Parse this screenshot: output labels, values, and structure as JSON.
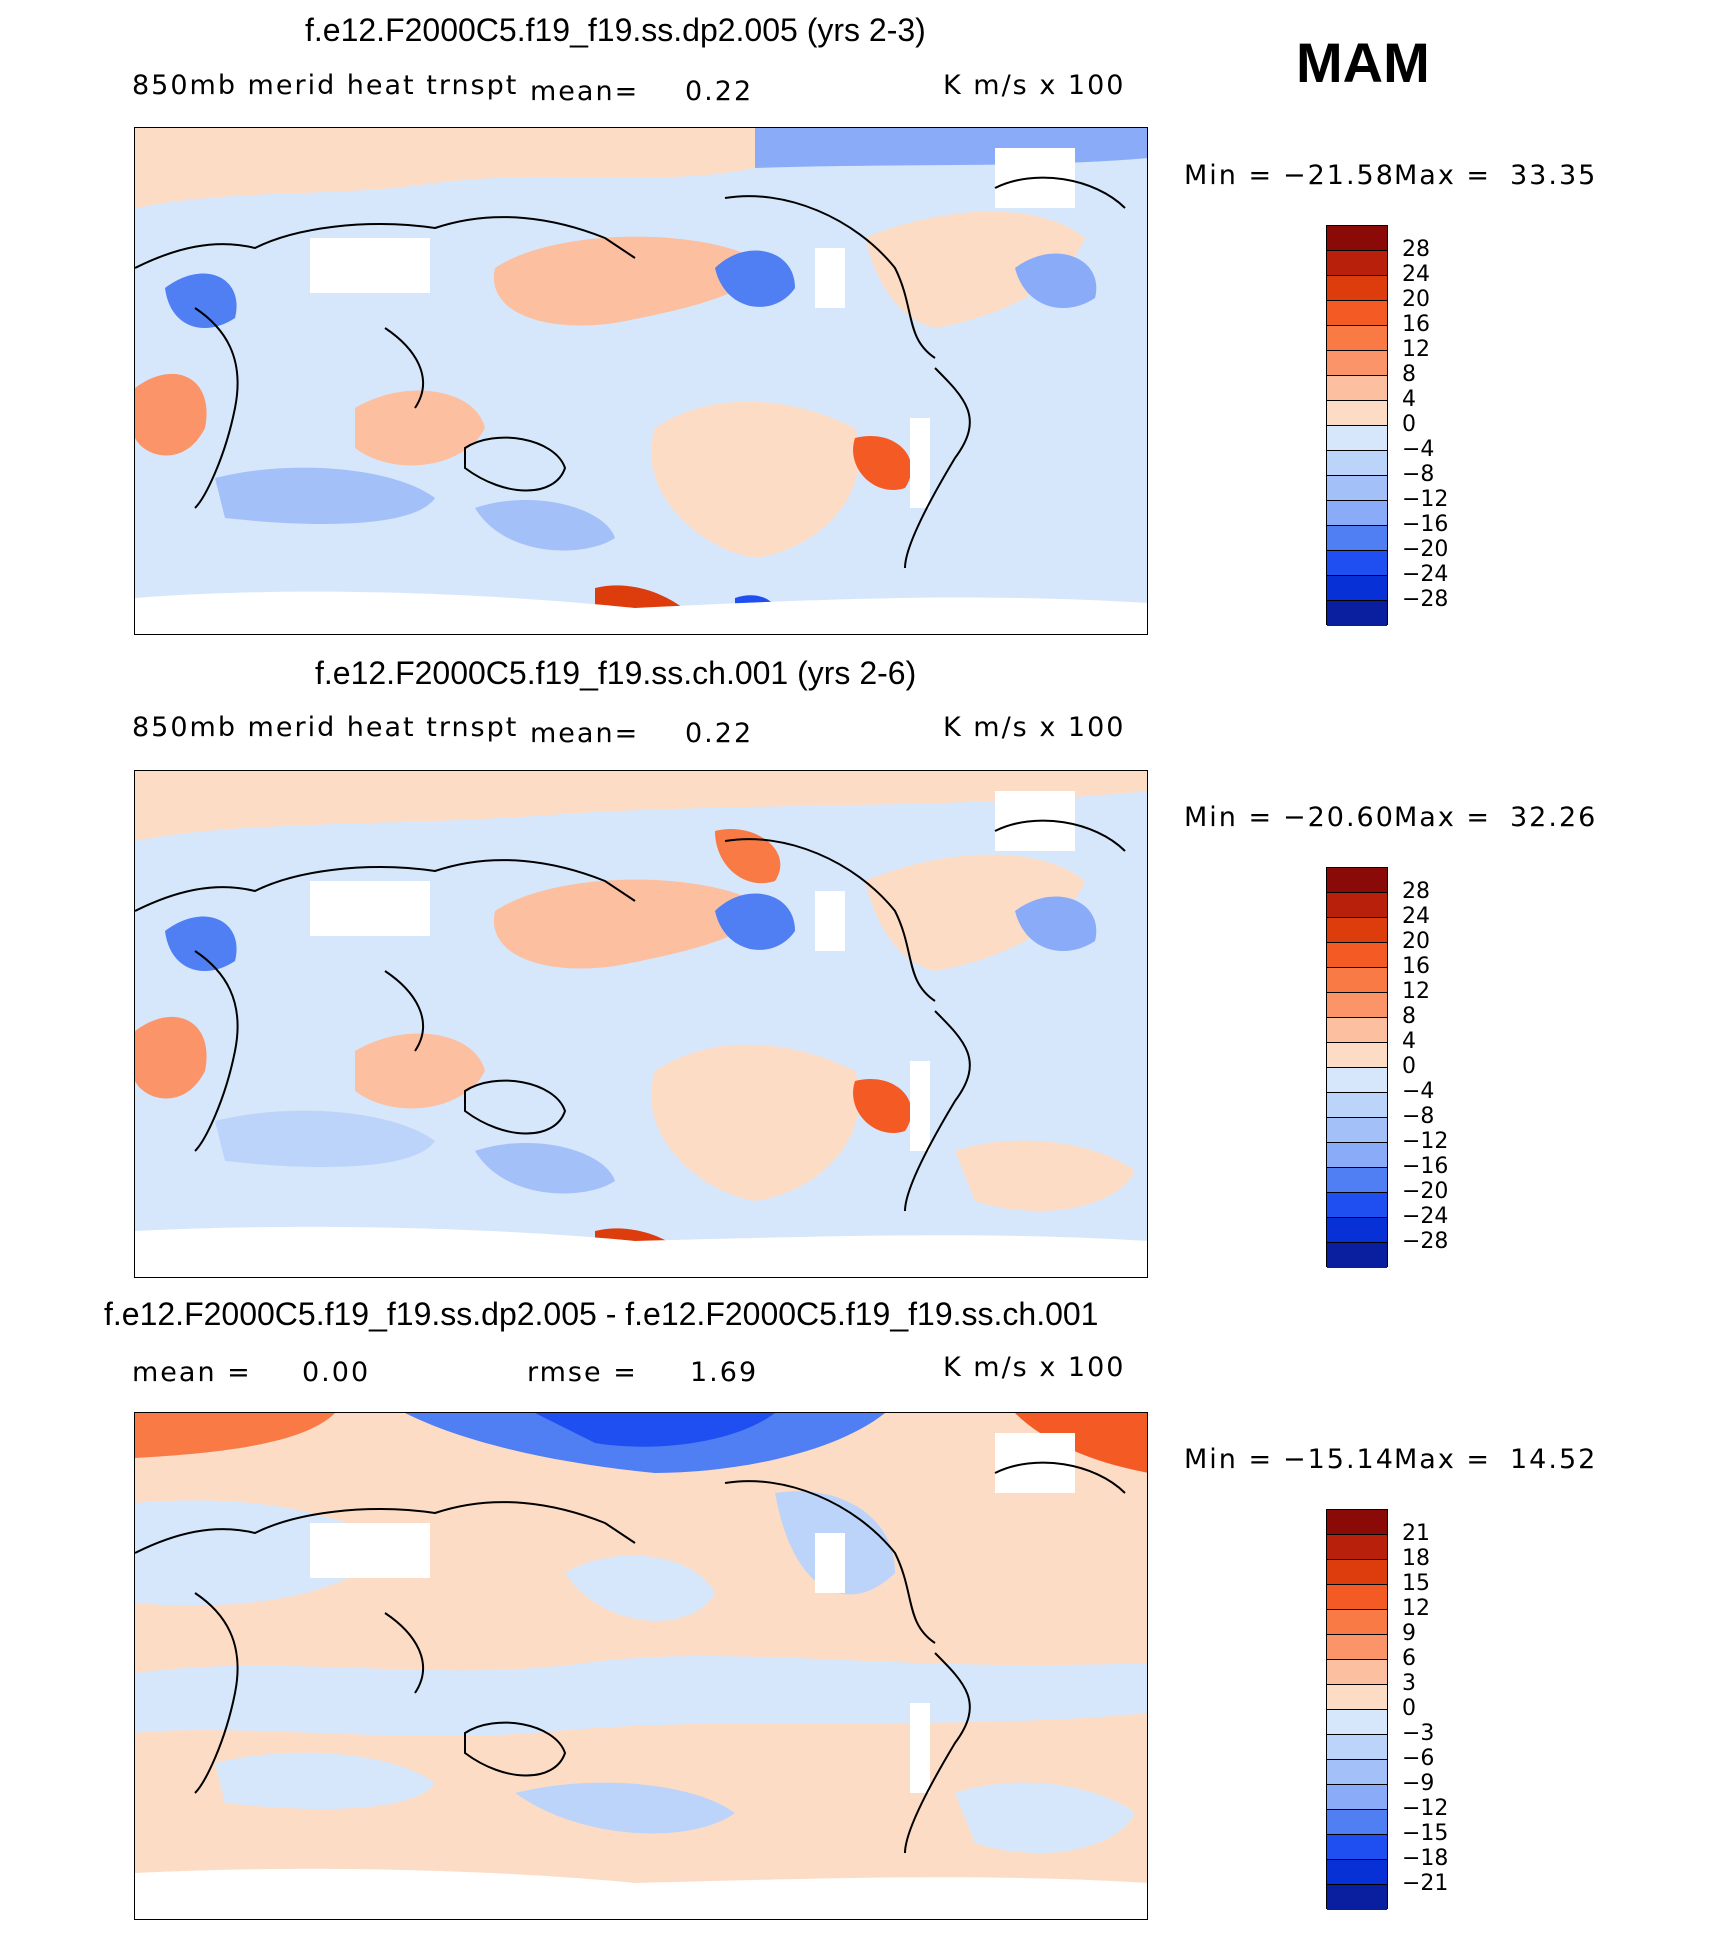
{
  "season": "MAM",
  "colors": {
    "pos": [
      "#fddcc6",
      "#fcbfa0",
      "#fb9468",
      "#fa7a45",
      "#f45a24",
      "#dd3d0c",
      "#b9200b",
      "#8a0a08"
    ],
    "neg": [
      "#d6e7fb",
      "#bcd4fa",
      "#a3c0f9",
      "#8aabf7",
      "#4f7ff3",
      "#1f4ff0",
      "#0730d6",
      "#0a1fa0",
      "#061286"
    ],
    "land_line": "#000000",
    "missing": "#ffffff"
  },
  "panels": [
    {
      "title": "f.e12.F2000C5.f19_f19.ss.dp2.005 (yrs 2-3)",
      "variable": "850mb  merid  heat  trnspt",
      "mean_label": "mean=",
      "mean_value": "0.22",
      "units": "K  m/s  x  100",
      "min_label": "Min  =",
      "min_value": "−21.58",
      "max_label": "Max  =",
      "max_value": "33.35",
      "colorbar_ticks": [
        "28",
        "24",
        "20",
        "16",
        "12",
        "8",
        "4",
        "0",
        "−4",
        "−8",
        "−12",
        "−16",
        "−20",
        "−24",
        "−28"
      ]
    },
    {
      "title": "f.e12.F2000C5.f19_f19.ss.ch.001 (yrs 2-6)",
      "variable": "850mb  merid  heat  trnspt",
      "mean_label": "mean=",
      "mean_value": "0.22",
      "units": "K  m/s  x  100",
      "min_label": "Min  =",
      "min_value": "−20.60",
      "max_label": "Max  =",
      "max_value": "32.26",
      "colorbar_ticks": [
        "28",
        "24",
        "20",
        "16",
        "12",
        "8",
        "4",
        "0",
        "−4",
        "−8",
        "−12",
        "−16",
        "−20",
        "−24",
        "−28"
      ]
    },
    {
      "title": "f.e12.F2000C5.f19_f19.ss.dp2.005 - f.e12.F2000C5.f19_f19.ss.ch.001",
      "mean_label": "mean  =",
      "mean_value": "0.00",
      "rmse_label": "rmse  =",
      "rmse_value": "1.69",
      "units": "K  m/s  x  100",
      "min_label": "Min  =",
      "min_value": "−15.14",
      "max_label": "Max  =",
      "max_value": "14.52",
      "colorbar_ticks": [
        "21",
        "18",
        "15",
        "12",
        "9",
        "6",
        "3",
        "0",
        "−3",
        "−6",
        "−9",
        "−12",
        "−15",
        "−18",
        "−21"
      ]
    }
  ]
}
